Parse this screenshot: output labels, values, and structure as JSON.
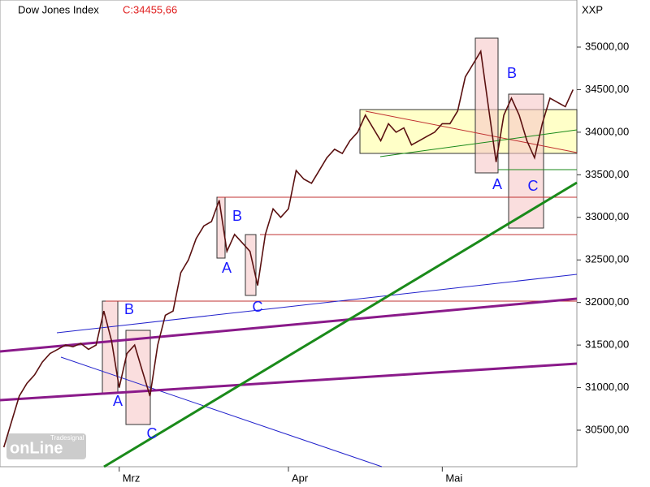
{
  "chart_data": {
    "type": "line",
    "title": "Dow Jones Index",
    "last_close": "C:34455,66",
    "symbol": "XXP",
    "logo": {
      "small": "Tradesignal",
      "big": "onLine"
    },
    "categories": [
      null,
      null,
      null,
      null,
      null,
      null,
      null,
      null,
      null,
      null,
      null,
      null,
      null,
      null,
      null,
      "Mrz",
      null,
      null,
      null,
      null,
      null,
      null,
      null,
      null,
      null,
      null,
      null,
      null,
      null,
      null,
      null,
      null,
      null,
      null,
      null,
      null,
      null,
      "Apr",
      null,
      null,
      null,
      null,
      null,
      null,
      null,
      null,
      null,
      null,
      null,
      null,
      null,
      null,
      null,
      null,
      null,
      null,
      null,
      "Mai",
      null,
      null,
      null,
      null,
      null,
      null,
      null,
      null,
      null,
      null,
      null,
      null,
      null,
      null,
      null,
      null,
      null
    ],
    "values": [
      30300,
      30600,
      30900,
      31050,
      31150,
      31300,
      31400,
      31450,
      31500,
      31480,
      31520,
      31450,
      31500,
      31900,
      31550,
      31000,
      31400,
      31500,
      31200,
      30900,
      31500,
      31850,
      31900,
      32350,
      32500,
      32750,
      32900,
      32950,
      33200,
      32600,
      32800,
      32700,
      32600,
      32200,
      32800,
      33100,
      33000,
      33100,
      33550,
      33450,
      33400,
      33550,
      33700,
      33800,
      33750,
      33900,
      34000,
      34200,
      34050,
      33900,
      34100,
      34000,
      34050,
      33850,
      33900,
      33950,
      34000,
      34100,
      34100,
      34250,
      34650,
      34800,
      34950,
      34300,
      33650,
      34200,
      34400,
      34200,
      33900,
      33700,
      34100,
      34400,
      34350,
      34300,
      34500
    ],
    "color": "#5a1010",
    "ylim": [
      30071,
      35553
    ],
    "yticks": [
      {
        "value": 30500,
        "label": "30500,00"
      },
      {
        "value": 31000,
        "label": "31000,00"
      },
      {
        "value": 31500,
        "label": "31500,00"
      },
      {
        "value": 32000,
        "label": "32000,00"
      },
      {
        "value": 32500,
        "label": "32500,00"
      },
      {
        "value": 33000,
        "label": "33000,00"
      },
      {
        "value": 33500,
        "label": "33500,00"
      },
      {
        "value": 34000,
        "label": "34000,00"
      },
      {
        "value": 34500,
        "label": "34500,00"
      },
      {
        "value": 35000,
        "label": "35000,00"
      }
    ],
    "grid": false,
    "annotations": [
      "A",
      "B",
      "C",
      "A",
      "B",
      "C",
      "A",
      "B",
      "C"
    ]
  }
}
